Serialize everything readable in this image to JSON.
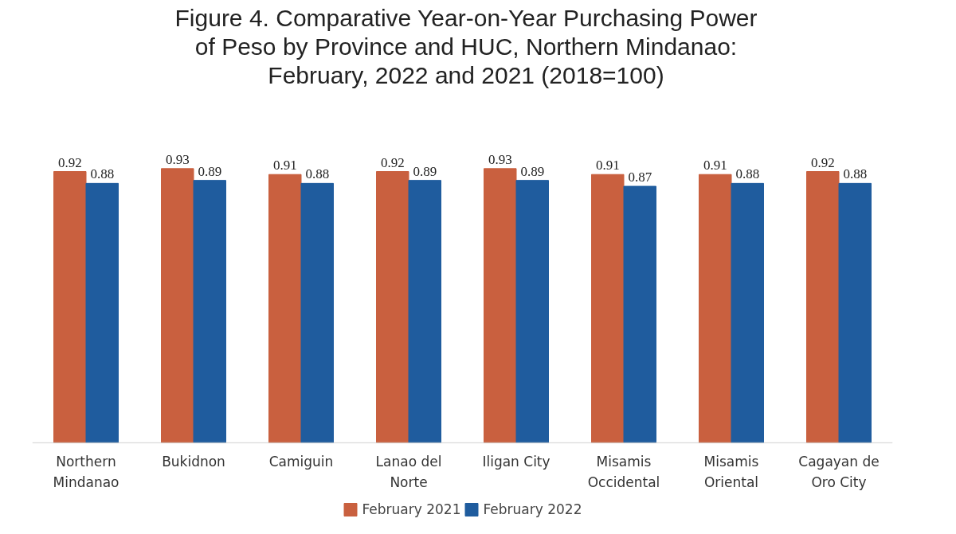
{
  "chart_data": {
    "type": "bar",
    "title": "Figure 4. Comparative Year-on-Year Purchasing Power\nof Peso by Province and HUC, Northern Mindanao:\nFebruary, 2022 and 2021 (2018=100)",
    "categories": [
      "Northern Mindanao",
      "Bukidnon",
      "Camiguin",
      "Lanao del Norte",
      "Iligan City",
      "Misamis Occidental",
      "Misamis Oriental",
      "Cagayan de Oro City"
    ],
    "series": [
      {
        "name": "February 2021",
        "color": "#c9603f",
        "values": [
          0.92,
          0.93,
          0.91,
          0.92,
          0.93,
          0.91,
          0.91,
          0.92
        ]
      },
      {
        "name": "February 2022",
        "color": "#1f5c9e",
        "values": [
          0.88,
          0.89,
          0.88,
          0.89,
          0.89,
          0.87,
          0.88,
          0.88
        ]
      }
    ],
    "data_labels": true,
    "grid": false,
    "legend": "bottom"
  }
}
